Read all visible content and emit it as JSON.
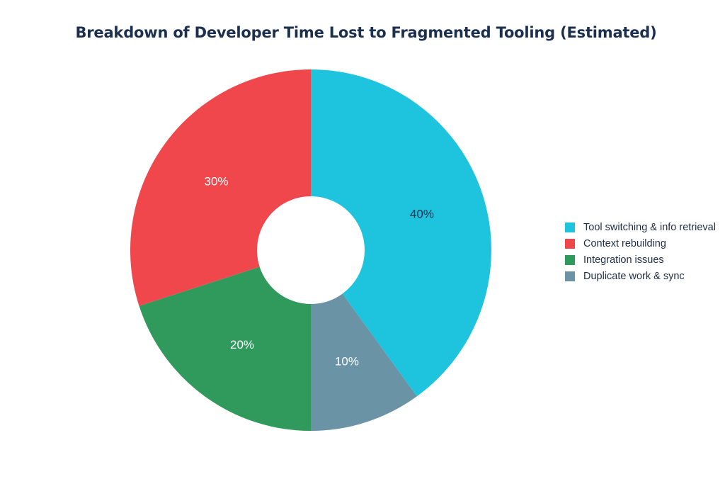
{
  "chart_data": {
    "type": "pie",
    "title": "Breakdown of Developer Time Lost to Fragmented Tooling (Estimated)",
    "donut": true,
    "legend_position": "right",
    "slices": [
      {
        "label": "Tool switching & info retrieval",
        "value": 40,
        "display": "40%",
        "color": "#1ec3de",
        "label_color": "#1b2f4e"
      },
      {
        "label": "Duplicate work & sync",
        "value": 10,
        "display": "10%",
        "color": "#6a93a6",
        "label_color": "#ffffff"
      },
      {
        "label": "Integration issues",
        "value": 20,
        "display": "20%",
        "color": "#2f9a5c",
        "label_color": "#ffffff"
      },
      {
        "label": "Context rebuilding",
        "value": 30,
        "display": "30%",
        "color": "#ef474c",
        "label_color": "#ffffff"
      }
    ],
    "legend": [
      {
        "label": "Tool switching & info retrieval",
        "color": "#1ec3de"
      },
      {
        "label": "Context rebuilding",
        "color": "#ef474c"
      },
      {
        "label": "Integration issues",
        "color": "#2f9a5c"
      },
      {
        "label": "Duplicate work & sync",
        "color": "#6a93a6"
      }
    ]
  }
}
